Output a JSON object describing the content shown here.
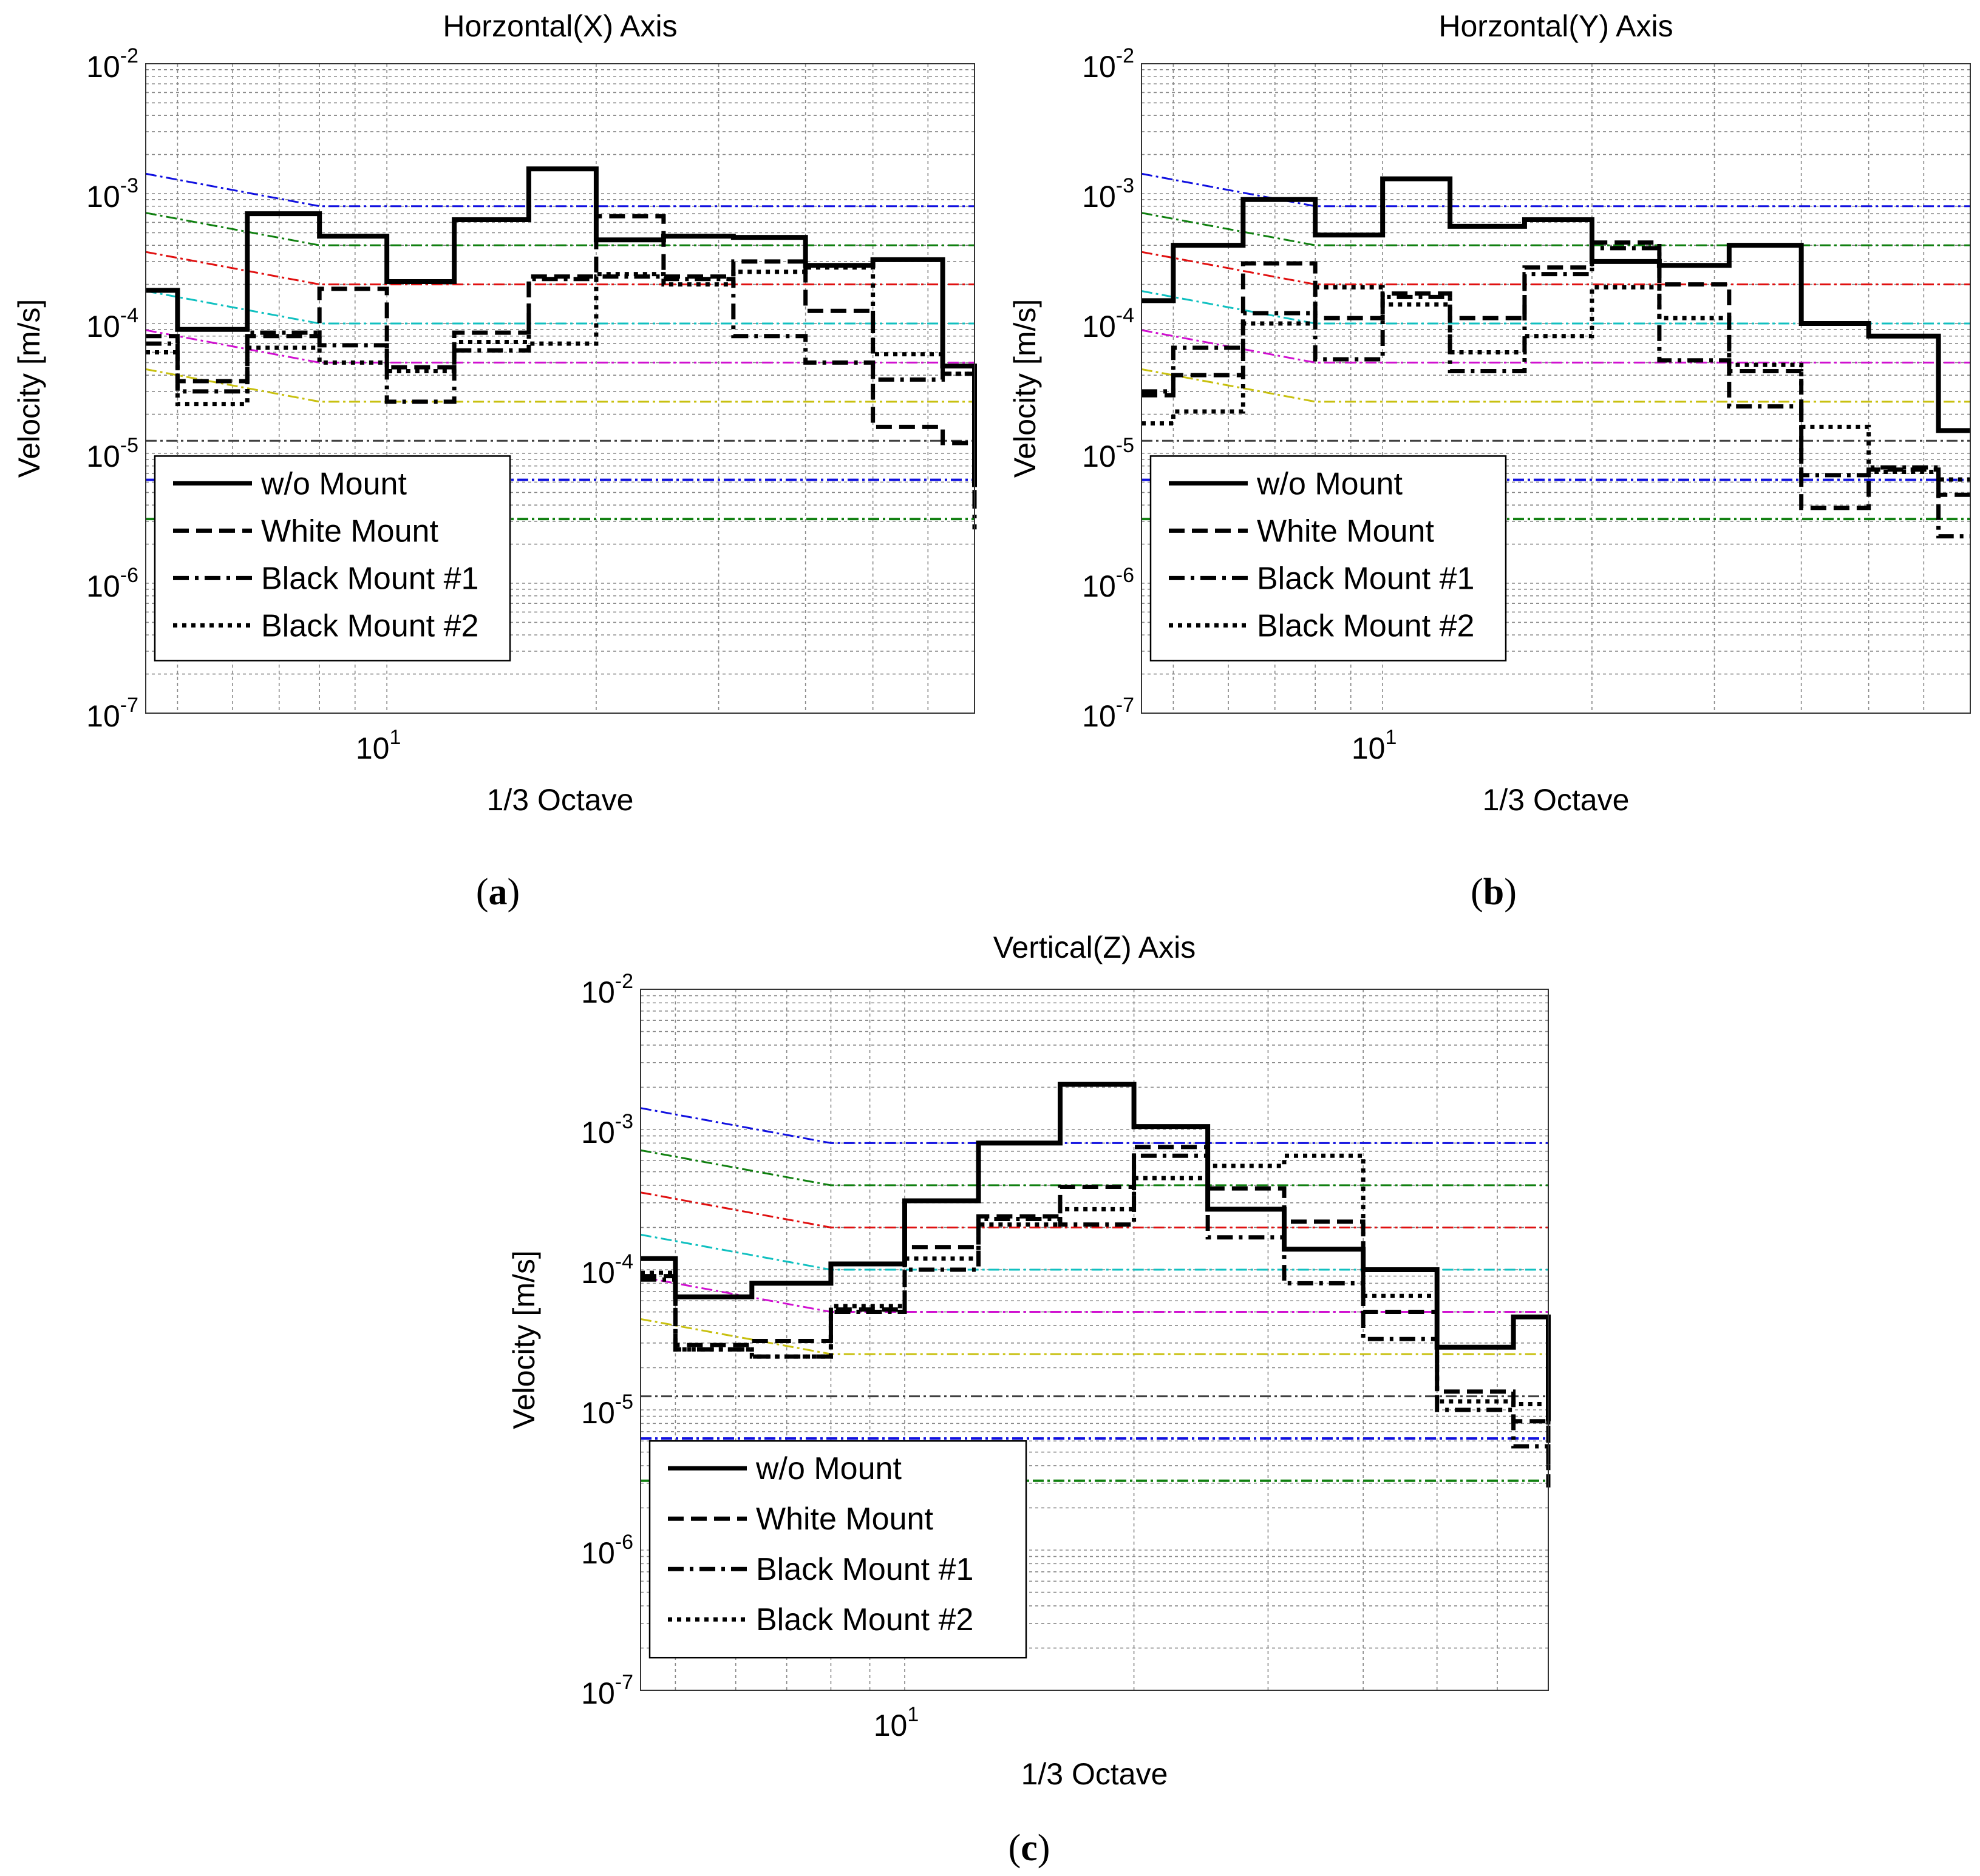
{
  "figure": {
    "series_names": [
      "w/o Mount",
      "White Mount",
      "Black Mount #1",
      "Black Mount #2"
    ],
    "criteria_colors": [
      "#1010e0",
      "#108010",
      "#e01010",
      "#10c0c0",
      "#d010d0",
      "#c8c010",
      "#404040",
      "#1010e0",
      "#108010"
    ]
  },
  "chart_data": [
    {
      "type": "line",
      "panel": "a",
      "panel_label": "a",
      "title": "Horzontal(X) Axis",
      "xlabel": "1/3 Octave",
      "ylabel": "Velocity [m/s]",
      "xscale": "log",
      "yscale": "log",
      "xlim": [
        4.5,
        70
      ],
      "ylim": [
        1e-07,
        0.01
      ],
      "x_tick_labels": [
        {
          "value": 10,
          "base": "10",
          "exp": "1"
        }
      ],
      "y_tick_labels": [
        {
          "value": 1e-07,
          "base": "10",
          "exp": "-7"
        },
        {
          "value": 1e-06,
          "base": "10",
          "exp": "-6"
        },
        {
          "value": 1e-05,
          "base": "10",
          "exp": "-5"
        },
        {
          "value": 0.0001,
          "base": "10",
          "exp": "-4"
        },
        {
          "value": 0.001,
          "base": "10",
          "exp": "-3"
        },
        {
          "value": 0.01,
          "base": "10",
          "exp": "-2"
        }
      ],
      "grid": true,
      "legend": {
        "location": "bottom-left",
        "entries": [
          "w/o Mount",
          "White Mount",
          "Black Mount #1",
          "Black Mount #2"
        ]
      },
      "bin_edges": [
        4.5,
        5,
        6.3,
        8,
        10,
        12.5,
        16,
        20,
        25,
        31.5,
        40,
        50,
        63,
        70
      ],
      "series": [
        {
          "name": "w/o Mount",
          "style": "solid",
          "values": [
            0.00018,
            9e-05,
            0.0007,
            0.00047,
            0.00021,
            0.00063,
            0.00155,
            0.00044,
            0.00047,
            0.00046,
            0.00028,
            0.00031,
            4.7e-05,
            5.5e-06
          ]
        },
        {
          "name": "White Mount",
          "style": "dashed",
          "values": [
            8e-05,
            3.6e-05,
            8e-05,
            0.000185,
            4.6e-05,
            8.5e-05,
            0.00023,
            0.00067,
            0.00023,
            0.0003,
            0.000125,
            1.6e-05,
            1.2e-05,
            4.8e-06
          ]
        },
        {
          "name": "Black Mount #1",
          "style": "dashdot",
          "values": [
            7e-05,
            3e-05,
            8.5e-05,
            6.8e-05,
            2.5e-05,
            6.2e-05,
            0.00022,
            0.00023,
            0.00022,
            8e-05,
            5e-05,
            3.7e-05,
            4.1e-05,
            2.6e-06
          ]
        },
        {
          "name": "Black Mount #2",
          "style": "dotted",
          "values": [
            6e-05,
            2.4e-05,
            6.5e-05,
            5e-05,
            4.3e-05,
            7.2e-05,
            7e-05,
            0.00024,
            0.0002,
            0.00025,
            0.00027,
            5.8e-05,
            4.1e-05,
            5.8e-06
          ]
        }
      ]
    },
    {
      "type": "line",
      "panel": "b",
      "panel_label": "b",
      "title": "Horzontal(Y) Axis",
      "xlabel": "1/3 Octave",
      "ylabel": "Velocity [m/s]",
      "xscale": "log",
      "yscale": "log",
      "xlim": [
        4.5,
        70
      ],
      "ylim": [
        1e-07,
        0.01
      ],
      "x_tick_labels": [
        {
          "value": 10,
          "base": "10",
          "exp": "1"
        }
      ],
      "y_tick_labels": [
        {
          "value": 1e-07,
          "base": "10",
          "exp": "-7"
        },
        {
          "value": 1e-06,
          "base": "10",
          "exp": "-6"
        },
        {
          "value": 1e-05,
          "base": "10",
          "exp": "-5"
        },
        {
          "value": 0.0001,
          "base": "10",
          "exp": "-4"
        },
        {
          "value": 0.001,
          "base": "10",
          "exp": "-3"
        },
        {
          "value": 0.01,
          "base": "10",
          "exp": "-2"
        }
      ],
      "grid": true,
      "legend": {
        "location": "bottom-left",
        "entries": [
          "w/o Mount",
          "White Mount",
          "Black Mount #1",
          "Black Mount #2"
        ]
      },
      "bin_edges": [
        4.5,
        5,
        6.3,
        8,
        10,
        12.5,
        16,
        20,
        25,
        31.5,
        40,
        50,
        63,
        70
      ],
      "series": [
        {
          "name": "w/o Mount",
          "style": "solid",
          "values": [
            0.00015,
            0.0004,
            0.0009,
            0.00048,
            0.0013,
            0.00056,
            0.00063,
            0.0003,
            0.00028,
            0.0004,
            0.0001,
            8e-05,
            1.5e-05,
            1.5e-05
          ]
        },
        {
          "name": "White Mount",
          "style": "dashed",
          "values": [
            2.8e-05,
            4e-05,
            0.00029,
            0.00011,
            0.00017,
            0.00011,
            0.00027,
            0.00042,
            0.0002,
            4.3e-05,
            3.8e-06,
            7.5e-06,
            4.8e-06,
            4.8e-06
          ]
        },
        {
          "name": "Black Mount #1",
          "style": "dashdot",
          "values": [
            3e-05,
            6.5e-05,
            0.00012,
            5.3e-05,
            0.00016,
            4.3e-05,
            0.00024,
            0.00038,
            5.2e-05,
            2.3e-05,
            6.8e-06,
            7.8e-06,
            2.3e-06,
            2.3e-06
          ]
        },
        {
          "name": "Black Mount #2",
          "style": "dotted",
          "values": [
            1.7e-05,
            2.1e-05,
            0.0001,
            0.00019,
            0.00014,
            6e-05,
            8e-05,
            0.00019,
            0.00011,
            4.8e-05,
            1.6e-05,
            7.2e-06,
            6.3e-06,
            6.3e-06
          ]
        }
      ]
    },
    {
      "type": "line",
      "panel": "c",
      "panel_label": "c",
      "title": "Vertical(Z) Axis",
      "xlabel": "1/3 Octave",
      "ylabel": "Velocity [m/s]",
      "xscale": "log",
      "yscale": "log",
      "xlim": [
        4.5,
        70
      ],
      "ylim": [
        1e-07,
        0.01
      ],
      "x_tick_labels": [
        {
          "value": 10,
          "base": "10",
          "exp": "1"
        }
      ],
      "y_tick_labels": [
        {
          "value": 1e-07,
          "base": "10",
          "exp": "-7"
        },
        {
          "value": 1e-06,
          "base": "10",
          "exp": "-6"
        },
        {
          "value": 1e-05,
          "base": "10",
          "exp": "-5"
        },
        {
          "value": 0.0001,
          "base": "10",
          "exp": "-4"
        },
        {
          "value": 0.001,
          "base": "10",
          "exp": "-3"
        },
        {
          "value": 0.01,
          "base": "10",
          "exp": "-2"
        }
      ],
      "grid": true,
      "legend": {
        "location": "bottom-left",
        "entries": [
          "w/o Mount",
          "White Mount",
          "Black Mount #1",
          "Black Mount #2"
        ]
      },
      "bin_edges": [
        4.5,
        5,
        6.3,
        8,
        10,
        12.5,
        16,
        20,
        25,
        31.5,
        40,
        50,
        63,
        70
      ],
      "series": [
        {
          "name": "w/o Mount",
          "style": "solid",
          "values": [
            0.00012,
            6.4e-05,
            8e-05,
            0.00011,
            0.00031,
            0.0008,
            0.0021,
            0.00105,
            0.00027,
            0.00014,
            0.0001,
            2.8e-05,
            4.6e-05,
            8.3e-06
          ]
        },
        {
          "name": "White Mount",
          "style": "dashed",
          "values": [
            9e-05,
            2.9e-05,
            3.1e-05,
            5.2e-05,
            0.000145,
            0.00024,
            0.00039,
            0.00075,
            0.00038,
            0.00022,
            5e-05,
            1.35e-05,
            8.3e-06,
            4e-06
          ]
        },
        {
          "name": "Black Mount #1",
          "style": "dashdot",
          "values": [
            8.5e-05,
            2.7e-05,
            2.4e-05,
            5e-05,
            0.0001,
            0.00023,
            0.00021,
            0.00065,
            0.00017,
            8e-05,
            3.2e-05,
            1e-05,
            5.5e-06,
            2.8e-06
          ]
        },
        {
          "name": "Black Mount #2",
          "style": "dotted",
          "values": [
            9.5e-05,
            2.7e-05,
            2.4e-05,
            5.5e-05,
            0.00012,
            0.00021,
            0.00027,
            0.00045,
            0.00055,
            0.00065,
            6.5e-05,
            1.15e-05,
            1.1e-05,
            3.5e-06
          ]
        }
      ]
    }
  ]
}
